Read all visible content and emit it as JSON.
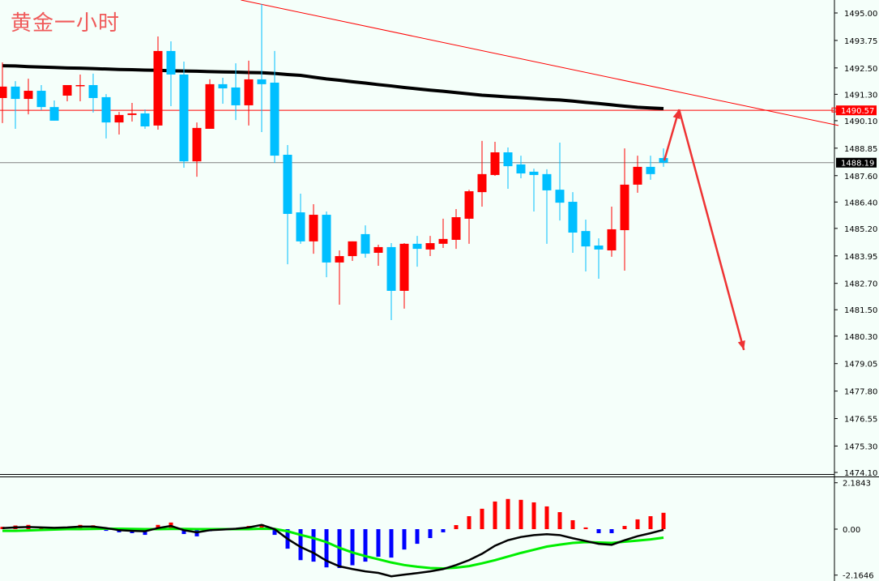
{
  "title": "黄金一小时",
  "colors": {
    "background": "#f5fffa",
    "up_candle": "#ff0000",
    "down_candle": "#00bfff",
    "moving_average": "#000000",
    "trendline": "#ff0000",
    "resistance_line": "#ff0000",
    "current_price_line": "#808080",
    "macd_positive": "#ff0000",
    "macd_negative": "#0000ff",
    "macd_line": "#000000",
    "signal_line": "#00ee00",
    "arrow": "#ee3333"
  },
  "chart_data": [
    {
      "type": "candlestick",
      "panel": "price",
      "y_ticks": [
        "1495.00",
        "1493.75",
        "1492.50",
        "1491.30",
        "1490.10",
        "1488.85",
        "1487.60",
        "1486.40",
        "1485.20",
        "1483.95",
        "1482.70",
        "1481.50",
        "1480.30",
        "1479.05",
        "1477.80",
        "1476.55",
        "1475.30",
        "1474.10"
      ],
      "ylim": [
        1474.1,
        1495.0
      ],
      "price_tags": {
        "resistance": "1490.57",
        "current": "1488.19"
      },
      "candles": [
        [
          1491.13,
          1492.75,
          1489.99,
          1491.65
        ],
        [
          1491.65,
          1491.9,
          1489.73,
          1491.09
        ],
        [
          1491.09,
          1492.01,
          1490.39,
          1491.46
        ],
        [
          1491.46,
          1491.72,
          1490.58,
          1490.72
        ],
        [
          1490.72,
          1491.02,
          1490.1,
          1490.1
        ],
        [
          1491.24,
          1491.72,
          1490.98,
          1491.72
        ],
        [
          1491.68,
          1492.2,
          1490.98,
          1491.72
        ],
        [
          1491.72,
          1492.24,
          1490.47,
          1491.13
        ],
        [
          1491.17,
          1491.31,
          1489.29,
          1490.02
        ],
        [
          1490.02,
          1490.5,
          1489.47,
          1490.36
        ],
        [
          1490.36,
          1490.91,
          1490.06,
          1490.43
        ],
        [
          1490.43,
          1490.61,
          1489.73,
          1489.84
        ],
        [
          1489.88,
          1493.93,
          1489.69,
          1493.27
        ],
        [
          1493.27,
          1493.71,
          1490.76,
          1492.2
        ],
        [
          1492.2,
          1492.79,
          1487.96,
          1488.25
        ],
        [
          1488.25,
          1490.02,
          1487.55,
          1489.77
        ],
        [
          1489.73,
          1491.98,
          1489.73,
          1491.76
        ],
        [
          1491.76,
          1492.05,
          1490.87,
          1491.57
        ],
        [
          1491.61,
          1492.71,
          1490.13,
          1490.8
        ],
        [
          1490.8,
          1492.83,
          1489.88,
          1491.98
        ],
        [
          1491.98,
          1495.41,
          1489.58,
          1491.76
        ],
        [
          1491.83,
          1493.27,
          1488.18,
          1488.51
        ],
        [
          1488.55,
          1488.99,
          1483.57,
          1485.86
        ],
        [
          1485.93,
          1486.78,
          1484.5,
          1484.61
        ],
        [
          1484.61,
          1486.3,
          1484.05,
          1485.82
        ],
        [
          1485.82,
          1485.97,
          1482.98,
          1483.65
        ],
        [
          1483.65,
          1484.2,
          1481.73,
          1483.94
        ],
        [
          1483.94,
          1484.61,
          1483.72,
          1484.61
        ],
        [
          1484.94,
          1485.34,
          1483.87,
          1484.05
        ],
        [
          1484.09,
          1484.46,
          1483.5,
          1484.35
        ],
        [
          1484.35,
          1484.53,
          1481.03,
          1482.36
        ],
        [
          1482.36,
          1484.53,
          1481.55,
          1484.5
        ],
        [
          1484.5,
          1484.86,
          1483.46,
          1484.27
        ],
        [
          1484.24,
          1484.86,
          1483.94,
          1484.53
        ],
        [
          1484.5,
          1485.64,
          1484.31,
          1484.72
        ],
        [
          1484.68,
          1486.08,
          1484.27,
          1485.71
        ],
        [
          1485.64,
          1486.96,
          1484.5,
          1486.89
        ],
        [
          1486.85,
          1489.18,
          1486.19,
          1487.67
        ],
        [
          1487.63,
          1489.14,
          1487.59,
          1488.66
        ],
        [
          1488.66,
          1488.88,
          1487.0,
          1488.03
        ],
        [
          1488.11,
          1488.51,
          1487.48,
          1487.7
        ],
        [
          1487.78,
          1487.92,
          1485.97,
          1487.63
        ],
        [
          1487.67,
          1487.89,
          1484.5,
          1486.93
        ],
        [
          1486.96,
          1489.1,
          1485.56,
          1486.37
        ],
        [
          1486.41,
          1486.85,
          1484.09,
          1485.01
        ],
        [
          1485.08,
          1485.6,
          1483.24,
          1484.38
        ],
        [
          1484.42,
          1484.75,
          1482.91,
          1484.24
        ],
        [
          1484.2,
          1486.19,
          1483.91,
          1485.16
        ],
        [
          1485.12,
          1488.84,
          1483.28,
          1487.19
        ],
        [
          1487.19,
          1488.51,
          1486.82,
          1488.0
        ],
        [
          1488.0,
          1488.51,
          1487.41,
          1487.67
        ],
        [
          1488.4,
          1488.84,
          1488.0,
          1488.19
        ]
      ],
      "moving_average": [
        1492.6,
        1492.59,
        1492.56,
        1492.54,
        1492.52,
        1492.5,
        1492.49,
        1492.47,
        1492.45,
        1492.43,
        1492.42,
        1492.4,
        1492.39,
        1492.37,
        1492.36,
        1492.35,
        1492.33,
        1492.32,
        1492.31,
        1492.29,
        1492.28,
        1492.25,
        1492.2,
        1492.16,
        1492.08,
        1492.0,
        1491.94,
        1491.87,
        1491.81,
        1491.74,
        1491.68,
        1491.61,
        1491.55,
        1491.49,
        1491.44,
        1491.38,
        1491.32,
        1491.26,
        1491.22,
        1491.18,
        1491.15,
        1491.11,
        1491.07,
        1491.04,
        1490.99,
        1490.93,
        1490.88,
        1490.82,
        1490.76,
        1490.71,
        1490.68,
        1490.65
      ],
      "horizontal_lines": [
        1490.57,
        1488.19
      ],
      "trendline": [
        [
          18.4,
          1495.59
        ],
        [
          64.5,
          1489.88
        ]
      ],
      "forecast_arrow": [
        [
          51.06,
          1488.29
        ],
        [
          52.2,
          1490.61
        ],
        [
          57.2,
          1479.67
        ]
      ]
    },
    {
      "type": "bar+line",
      "panel": "macd",
      "y_ticks": [
        "2.1843",
        "0.00",
        "-2.1646"
      ],
      "ylim": [
        -2.1646,
        2.1843
      ],
      "histogram": [
        0.11,
        0.17,
        0.2,
        0.11,
        0.02,
        0.11,
        0.2,
        0.18,
        -0.08,
        -0.15,
        -0.19,
        -0.27,
        0.2,
        0.31,
        -0.23,
        -0.34,
        -0.1,
        0.04,
        0.04,
        0.15,
        0.23,
        -0.27,
        -0.92,
        -1.46,
        -1.53,
        -1.8,
        -1.83,
        -1.7,
        -1.53,
        -1.3,
        -1.34,
        -0.96,
        -0.69,
        -0.42,
        -0.15,
        0.19,
        0.61,
        0.96,
        1.3,
        1.42,
        1.38,
        1.26,
        1.07,
        0.8,
        0.42,
        0.08,
        -0.19,
        -0.19,
        0.15,
        0.46,
        0.61,
        0.77
      ],
      "macd_line": [
        0.05,
        0.08,
        0.1,
        0.08,
        0.06,
        0.08,
        0.12,
        0.12,
        0.05,
        -0.05,
        -0.08,
        -0.1,
        0.05,
        0.15,
        -0.05,
        -0.15,
        -0.05,
        -0.02,
        0.02,
        0.08,
        0.2,
        0.0,
        -0.46,
        -0.84,
        -1.12,
        -1.49,
        -1.75,
        -1.88,
        -1.99,
        -2.06,
        -2.22,
        -2.14,
        -2.07,
        -1.99,
        -1.88,
        -1.69,
        -1.46,
        -1.16,
        -0.78,
        -0.52,
        -0.37,
        -0.28,
        -0.24,
        -0.28,
        -0.43,
        -0.56,
        -0.69,
        -0.74,
        -0.52,
        -0.33,
        -0.19,
        -0.03
      ],
      "signal_line": [
        -0.08,
        -0.08,
        -0.06,
        -0.04,
        -0.02,
        0.0,
        0.0,
        0.01,
        0.02,
        0.02,
        0.01,
        0.0,
        0.0,
        0.01,
        0.01,
        0.0,
        0.0,
        0.0,
        0.0,
        0.0,
        0.02,
        0.01,
        -0.1,
        -0.27,
        -0.42,
        -0.61,
        -0.88,
        -1.1,
        -1.27,
        -1.42,
        -1.57,
        -1.69,
        -1.77,
        -1.83,
        -1.85,
        -1.81,
        -1.74,
        -1.61,
        -1.46,
        -1.29,
        -1.12,
        -0.97,
        -0.82,
        -0.73,
        -0.65,
        -0.61,
        -0.63,
        -0.65,
        -0.59,
        -0.54,
        -0.48,
        -0.4
      ]
    }
  ]
}
